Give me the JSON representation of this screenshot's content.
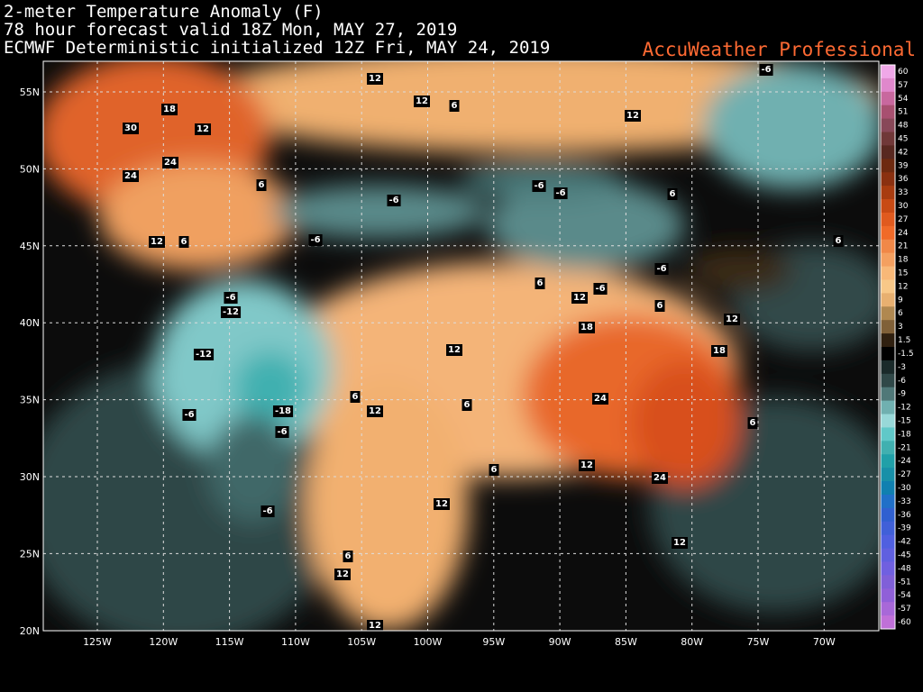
{
  "header": {
    "line1": "2-meter Temperature Anomaly (F)",
    "line2": "78 hour forecast valid 18Z Mon, MAY 27, 2019",
    "line3": "ECMWF Deterministic initialized 12Z Fri, MAY 24, 2019",
    "brand": "AccuWeather Professional"
  },
  "lat_labels": [
    "55N",
    "50N",
    "45N",
    "40N",
    "35N",
    "30N",
    "25N",
    "20N"
  ],
  "lon_labels": [
    "125W",
    "120W",
    "115W",
    "110W",
    "105W",
    "100W",
    "95W",
    "90W",
    "85W",
    "80W",
    "75W",
    "70W"
  ],
  "colorbar": {
    "values": [
      60,
      57,
      54,
      51,
      48,
      45,
      42,
      39,
      36,
      33,
      30,
      27,
      24,
      21,
      18,
      15,
      12,
      9,
      6,
      3,
      1.5,
      -1.5,
      -3,
      -6,
      -9,
      -12,
      -15,
      -18,
      -21,
      -24,
      -27,
      -30,
      -33,
      -36,
      -39,
      -42,
      -45,
      -48,
      -51,
      -54,
      -57,
      -60
    ],
    "colors": [
      "#f0a8e8",
      "#e088cc",
      "#c8689e",
      "#a85070",
      "#884858",
      "#703838",
      "#582820",
      "#6e2a10",
      "#8a3010",
      "#a83c10",
      "#c84a14",
      "#e05a1e",
      "#f06a28",
      "#f08848",
      "#f4a060",
      "#f8b878",
      "#f8c888",
      "#e8b070",
      "#b08850",
      "#806038",
      "#302010",
      "#000000",
      "#1a2a2a",
      "#304848",
      "#507878",
      "#70b0b0",
      "#98d8d8",
      "#60c8c8",
      "#40b0b0",
      "#20a0a8",
      "#1890a8",
      "#1080b0",
      "#2070c8",
      "#3060d0",
      "#4060d8",
      "#5060e0",
      "#6060e0",
      "#7060e0",
      "#8060d8",
      "#9060d8",
      "#a868d8",
      "#c070d8",
      "#d880e0"
    ]
  },
  "map_labels": [
    12,
    12,
    6,
    30,
    18,
    12,
    24,
    24,
    12,
    -6,
    6,
    -6,
    -6,
    -6,
    6,
    12,
    6,
    -6,
    6,
    -6,
    6,
    12,
    -6,
    -6,
    -12,
    6,
    12,
    18,
    12,
    18,
    -12,
    6,
    24,
    12,
    6,
    -18,
    -6,
    -6,
    6,
    12,
    6,
    24,
    12,
    -6,
    12,
    6,
    12,
    12
  ]
}
